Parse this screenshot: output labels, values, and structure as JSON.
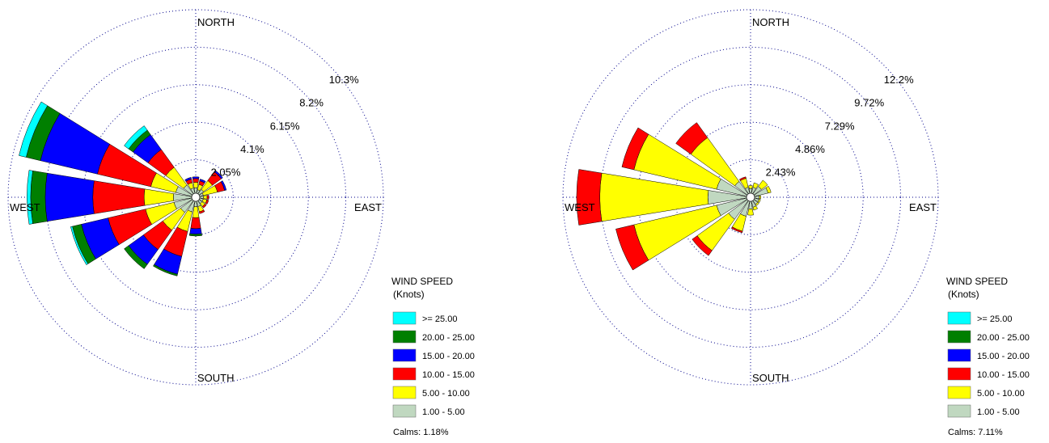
{
  "chart_data": [
    {
      "type": "wind_rose",
      "directions": [
        "N",
        "NNE",
        "NE",
        "ENE",
        "E",
        "ESE",
        "SE",
        "SSE",
        "S",
        "SSW",
        "SW",
        "WSW",
        "W",
        "WNW",
        "NW",
        "NNW"
      ],
      "direction_labels": {
        "north": "NORTH",
        "east": "EAST",
        "south": "SOUTH",
        "west": "WEST"
      },
      "ring_labels": [
        "2.05%",
        "4.1%",
        "6.15%",
        "8.2%",
        "10.3%"
      ],
      "ring_values": [
        2.05,
        4.1,
        6.15,
        8.2,
        10.25
      ],
      "max_percent": 10.25,
      "speed_classes": [
        "1.00 - 5.00",
        "5.00 - 10.00",
        "10.00 - 15.00",
        "15.00 - 20.00",
        "20.00 - 25.00",
        ">= 25.00"
      ],
      "series": [
        {
          "name": "1.00 - 5.00",
          "values": [
            0.3,
            0.2,
            0.3,
            0.2,
            0.2,
            0.2,
            0.2,
            0.3,
            0.3,
            0.6,
            0.8,
            1.0,
            1.0,
            0.9,
            0.6,
            0.3
          ]
        },
        {
          "name": "5.00 - 10.00",
          "values": [
            0.3,
            0.3,
            0.6,
            0.8,
            0.2,
            0.2,
            0.2,
            0.3,
            0.6,
            1.1,
            1.2,
            1.6,
            1.6,
            1.4,
            1.2,
            0.3
          ]
        },
        {
          "name": "10.00 - 15.00",
          "values": [
            0.2,
            0.2,
            0.6,
            0.4,
            0.1,
            0.1,
            0.1,
            0.1,
            0.6,
            1.4,
            1.3,
            2.1,
            2.8,
            3.0,
            1.2,
            0.2
          ]
        },
        {
          "name": "15.00 - 20.00",
          "values": [
            0.1,
            0.1,
            0.1,
            0.1,
            0,
            0,
            0,
            0,
            0.3,
            1.0,
            1.0,
            1.5,
            2.6,
            3.2,
            1.0,
            0.1
          ]
        },
        {
          "name": "20.00 - 25.00",
          "values": [
            0,
            0,
            0,
            0,
            0,
            0,
            0,
            0,
            0.1,
            0.1,
            0.3,
            0.5,
            0.8,
            0.8,
            0.3,
            0
          ]
        },
        {
          "name": ">= 25.00",
          "values": [
            0,
            0,
            0,
            0,
            0,
            0,
            0,
            0,
            0,
            0,
            0,
            0.1,
            0.2,
            0.4,
            0.3,
            0
          ]
        }
      ],
      "legend": {
        "title": "WIND SPEED",
        "subtitle": "(Knots)",
        "calms": "Calms: 1.18%"
      }
    },
    {
      "type": "wind_rose",
      "directions": [
        "N",
        "NNE",
        "NE",
        "ENE",
        "E",
        "ESE",
        "SE",
        "SSE",
        "S",
        "SSW",
        "SW",
        "WSW",
        "W",
        "WNW",
        "NW",
        "NNW"
      ],
      "direction_labels": {
        "north": "NORTH",
        "east": "EAST",
        "south": "SOUTH",
        "west": "WEST"
      },
      "ring_labels": [
        "2.43%",
        "4.86%",
        "7.29%",
        "9.72%",
        "12.2%"
      ],
      "ring_values": [
        2.43,
        4.86,
        7.29,
        9.72,
        12.15
      ],
      "max_percent": 12.15,
      "speed_classes": [
        "1.00 - 5.00",
        "5.00 - 10.00",
        "10.00 - 15.00",
        "15.00 - 20.00",
        "20.00 - 25.00",
        ">= 25.00"
      ],
      "series": [
        {
          "name": "1.00 - 5.00",
          "values": [
            0.3,
            0.4,
            0.6,
            0.9,
            0.3,
            0.3,
            0.3,
            0.4,
            0.5,
            1.0,
            1.5,
            2.0,
            2.5,
            2.0,
            1.0,
            0.4
          ]
        },
        {
          "name": "5.00 - 10.00",
          "values": [
            0.2,
            0.3,
            0.5,
            0.2,
            0.1,
            0.1,
            0.1,
            0.2,
            0.4,
            1.0,
            2.5,
            5.5,
            7.0,
            5.5,
            3.5,
            0.6
          ]
        },
        {
          "name": "10.00 - 15.00",
          "values": [
            0,
            0,
            0,
            0,
            0,
            0,
            0,
            0,
            0,
            0.1,
            0.4,
            1.2,
            1.5,
            0.8,
            1.2,
            0.1
          ]
        },
        {
          "name": "15.00 - 20.00",
          "values": [
            0,
            0,
            0,
            0,
            0,
            0,
            0,
            0,
            0,
            0,
            0,
            0,
            0,
            0,
            0,
            0
          ]
        },
        {
          "name": "20.00 - 25.00",
          "values": [
            0,
            0,
            0,
            0,
            0,
            0,
            0,
            0,
            0,
            0,
            0,
            0,
            0,
            0,
            0,
            0
          ]
        },
        {
          "name": ">= 25.00",
          "values": [
            0,
            0,
            0,
            0,
            0,
            0,
            0,
            0,
            0,
            0,
            0,
            0,
            0,
            0,
            0,
            0
          ]
        }
      ],
      "legend": {
        "title": "WIND SPEED",
        "subtitle": "(Knots)",
        "calms": "Calms: 7.11%"
      }
    }
  ],
  "colors": {
    "1.00 - 5.00": "#c0d8c0",
    "5.00 - 10.00": "#ffff00",
    "10.00 - 15.00": "#ff0000",
    "15.00 - 20.00": "#0000ff",
    "20.00 - 25.00": "#007f00",
    ">= 25.00": "#00ffff",
    "grid": "#00008b"
  }
}
